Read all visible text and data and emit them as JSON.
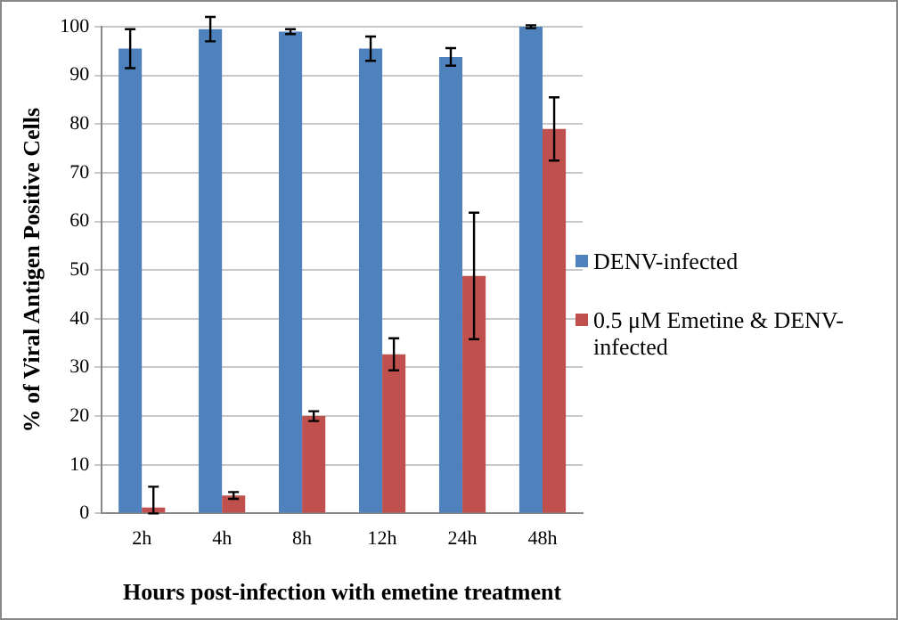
{
  "chart_data": {
    "type": "bar",
    "xlabel": "Hours post-infection with emetine treatment",
    "ylabel": "% of Viral Antigen Positive Cells",
    "categories": [
      "2h",
      "4h",
      "8h",
      "12h",
      "24h",
      "48h"
    ],
    "series": [
      {
        "name": "DENV-infected",
        "color": "#4f81bd",
        "values": [
          95.5,
          99.5,
          99,
          95.5,
          93.8,
          100
        ],
        "errors": [
          4,
          2.5,
          0.5,
          2.5,
          1.8,
          0.3
        ]
      },
      {
        "name": "0.5 μM Emetine & DENV-infected",
        "color": "#c0504d",
        "values": [
          1.2,
          3.7,
          20,
          32.7,
          48.8,
          79
        ],
        "errors": [
          [
            0,
            5.5
          ],
          0.7,
          1,
          3.3,
          13,
          6.5
        ]
      }
    ],
    "ylim": [
      0,
      100
    ],
    "yticks": [
      0,
      10,
      20,
      30,
      40,
      50,
      60,
      70,
      80,
      90,
      100
    ],
    "grid": "y",
    "legend": "right"
  }
}
